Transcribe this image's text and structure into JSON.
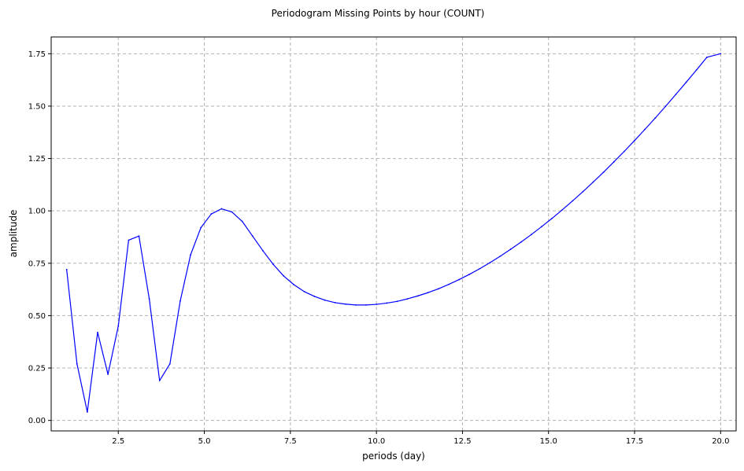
{
  "chart_data": {
    "type": "line",
    "title": "Periodogram Missing Points by hour (COUNT)",
    "xlabel": "periods (day)",
    "ylabel": "amplitude",
    "xlim": [
      0.55,
      20.45
    ],
    "ylim": [
      -0.05,
      1.83
    ],
    "xticks": [
      2.5,
      5.0,
      7.5,
      10.0,
      12.5,
      15.0,
      17.5,
      20.0
    ],
    "xtick_labels": [
      "2.5",
      "5.0",
      "7.5",
      "10.0",
      "12.5",
      "15.0",
      "17.5",
      "20.0"
    ],
    "yticks": [
      0.0,
      0.25,
      0.5,
      0.75,
      1.0,
      1.25,
      1.5,
      1.75
    ],
    "ytick_labels": [
      "0.00",
      "0.25",
      "0.50",
      "0.75",
      "1.00",
      "1.25",
      "1.50",
      "1.75"
    ],
    "grid": true,
    "line_color": "#0000ff",
    "series": [
      {
        "x": [
          1.0,
          1.3,
          1.6,
          1.9,
          2.2,
          2.5,
          2.8,
          3.1,
          3.4,
          3.7,
          4.0,
          4.3,
          4.6,
          4.9,
          5.2,
          5.5,
          5.8,
          6.1,
          6.4,
          6.7,
          7.0,
          7.3,
          7.6,
          7.9,
          8.2,
          8.5,
          8.8,
          9.1,
          9.4,
          9.7,
          10.0,
          10.3,
          10.6,
          10.9,
          11.2,
          11.5,
          11.8,
          12.1,
          12.4,
          12.7,
          13.0,
          13.3,
          13.6,
          13.9,
          14.2,
          14.5,
          14.8,
          15.1,
          15.4,
          15.7,
          16.0,
          16.3,
          16.6,
          16.9,
          17.2,
          17.5,
          17.8,
          18.1,
          18.4,
          18.7,
          19.0,
          19.3,
          19.6,
          20.0
        ],
        "y": [
          0.72,
          0.27,
          0.04,
          0.42,
          0.22,
          0.45,
          0.86,
          0.88,
          0.58,
          0.19,
          0.27,
          0.57,
          0.79,
          0.92,
          0.985,
          1.01,
          0.995,
          0.95,
          0.88,
          0.81,
          0.745,
          0.69,
          0.648,
          0.615,
          0.592,
          0.574,
          0.562,
          0.555,
          0.551,
          0.551,
          0.554,
          0.56,
          0.568,
          0.58,
          0.594,
          0.61,
          0.628,
          0.649,
          0.672,
          0.697,
          0.724,
          0.753,
          0.784,
          0.817,
          0.851,
          0.887,
          0.925,
          0.964,
          1.005,
          1.048,
          1.092,
          1.138,
          1.185,
          1.234,
          1.284,
          1.336,
          1.389,
          1.443,
          1.499,
          1.556,
          1.614,
          1.673,
          1.733,
          1.75
        ]
      }
    ]
  }
}
